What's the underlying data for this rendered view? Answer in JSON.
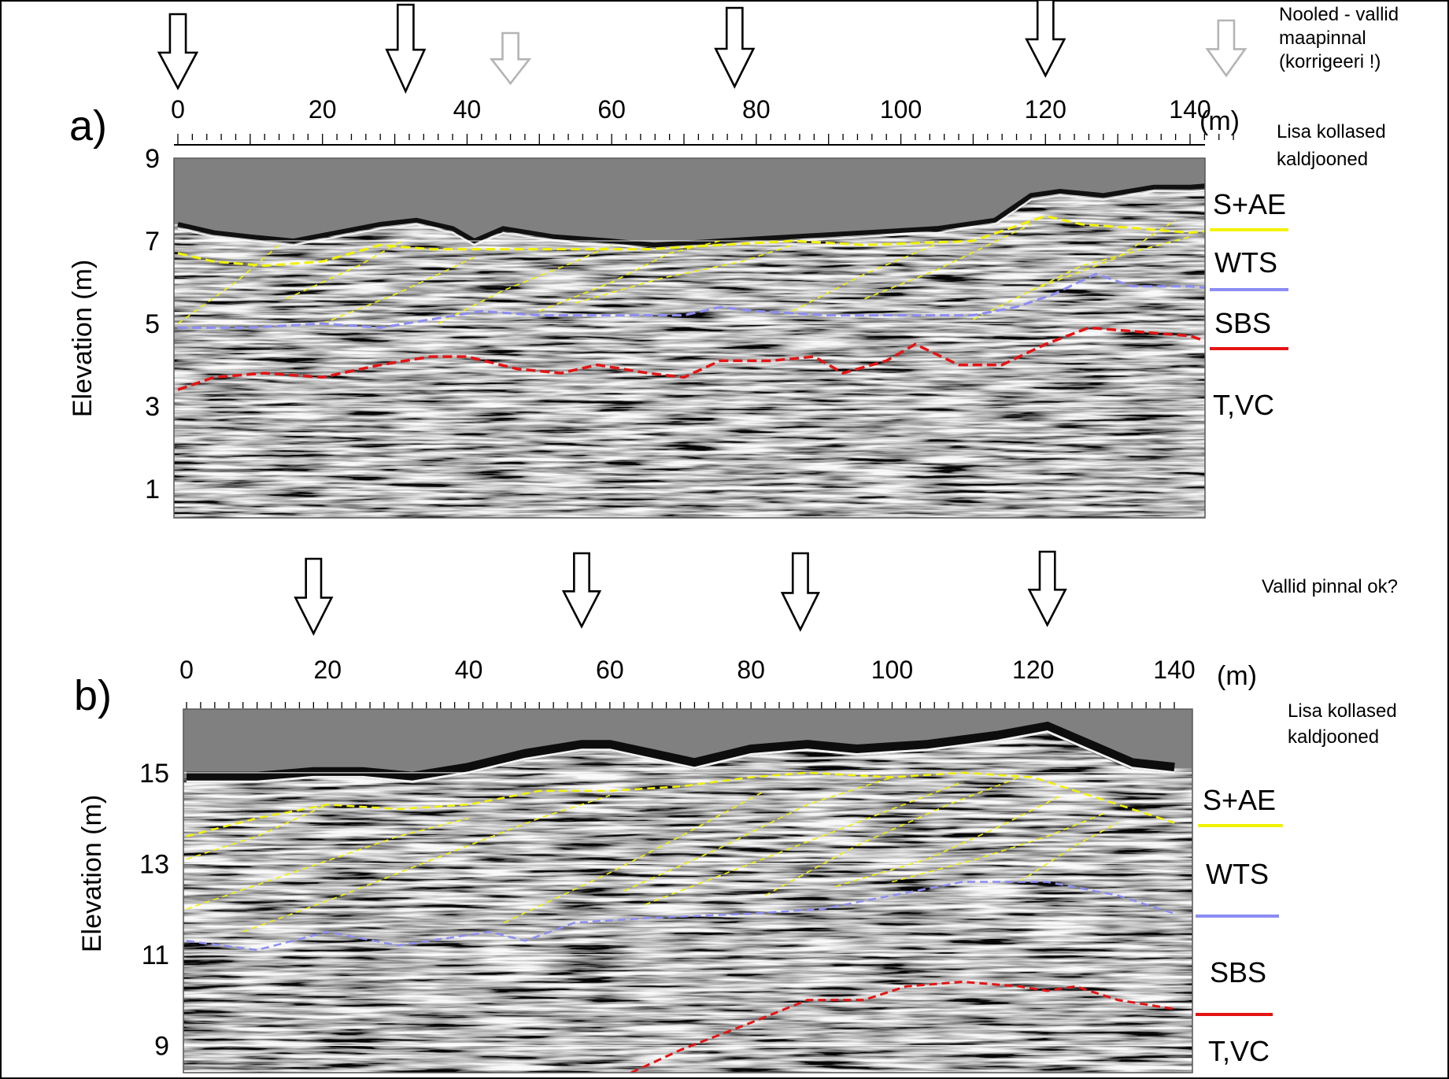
{
  "notes": {
    "top_right": [
      "Nooled - vallid",
      "maapinnal",
      "(korrigeeri !)"
    ],
    "panel_a_right": [
      "Lisa kollased",
      "kaldjooned"
    ],
    "middle_right": "Vallid pinnal ok?",
    "panel_b_right": [
      "Lisa kollased",
      "kaldjooned"
    ]
  },
  "colors": {
    "yellow": "#f2f200",
    "blue": "#8c8cf5",
    "red": "#e41414",
    "sky": "#808080",
    "arrow_black": "#000000",
    "arrow_gray": "#b4b4b4"
  },
  "panels": [
    {
      "id": "a",
      "panel_label": "a)",
      "x_ticks": [
        "0",
        "20",
        "40",
        "60",
        "80",
        "100",
        "120",
        "140"
      ],
      "x_unit": "(m)",
      "x_range": [
        0,
        147
      ],
      "y_label": "Elevation (m)",
      "y_ticks": [
        "9",
        "7",
        "5",
        "3",
        "1"
      ],
      "y_range": [
        0.3,
        9
      ],
      "units": [
        "S+AE",
        "WTS",
        "SBS",
        "T,VC"
      ],
      "unit_line_colors": [
        "yellow",
        "blue",
        "red"
      ],
      "arrows": [
        {
          "at": 0,
          "shade": "black"
        },
        {
          "at": 31.5,
          "shade": "black"
        },
        {
          "at": 46,
          "shade": "gray"
        },
        {
          "at": 77,
          "shade": "black"
        },
        {
          "at": 120,
          "shade": "black"
        },
        {
          "at": 145,
          "shade": "gray"
        }
      ],
      "surface": [
        [
          0,
          7.4
        ],
        [
          5,
          7.2
        ],
        [
          10,
          7.1
        ],
        [
          16,
          7.0
        ],
        [
          22,
          7.2
        ],
        [
          28,
          7.4
        ],
        [
          33,
          7.5
        ],
        [
          38,
          7.3
        ],
        [
          41,
          7.0
        ],
        [
          45,
          7.3
        ],
        [
          52,
          7.1
        ],
        [
          60,
          7.0
        ],
        [
          66,
          6.9
        ],
        [
          75,
          7.0
        ],
        [
          85,
          7.1
        ],
        [
          95,
          7.2
        ],
        [
          105,
          7.3
        ],
        [
          113,
          7.5
        ],
        [
          118,
          8.1
        ],
        [
          122,
          8.2
        ],
        [
          128,
          8.1
        ],
        [
          135,
          8.3
        ],
        [
          140,
          8.3
        ],
        [
          147,
          8.4
        ]
      ],
      "yellow_boundary": [
        [
          0,
          6.7
        ],
        [
          5,
          6.5
        ],
        [
          12,
          6.4
        ],
        [
          20,
          6.5
        ],
        [
          28,
          6.9
        ],
        [
          35,
          6.8
        ],
        [
          45,
          6.8
        ],
        [
          55,
          6.8
        ],
        [
          65,
          6.8
        ],
        [
          75,
          6.9
        ],
        [
          85,
          7.0
        ],
        [
          95,
          6.9
        ],
        [
          110,
          7.0
        ],
        [
          120,
          7.6
        ],
        [
          125,
          7.4
        ],
        [
          133,
          7.3
        ],
        [
          140,
          7.2
        ],
        [
          147,
          7.3
        ]
      ],
      "blue_boundary": [
        [
          0,
          4.9
        ],
        [
          10,
          4.9
        ],
        [
          20,
          5.0
        ],
        [
          28,
          4.9
        ],
        [
          35,
          5.1
        ],
        [
          42,
          5.3
        ],
        [
          50,
          5.2
        ],
        [
          60,
          5.2
        ],
        [
          70,
          5.2
        ],
        [
          75,
          5.4
        ],
        [
          80,
          5.3
        ],
        [
          90,
          5.2
        ],
        [
          100,
          5.2
        ],
        [
          110,
          5.2
        ],
        [
          116,
          5.4
        ],
        [
          121,
          5.7
        ],
        [
          127,
          6.2
        ],
        [
          132,
          5.9
        ],
        [
          140,
          5.9
        ],
        [
          147,
          5.8
        ]
      ],
      "red_boundary": [
        [
          0,
          3.4
        ],
        [
          5,
          3.7
        ],
        [
          12,
          3.8
        ],
        [
          20,
          3.7
        ],
        [
          28,
          4.0
        ],
        [
          35,
          4.2
        ],
        [
          40,
          4.2
        ],
        [
          47,
          3.9
        ],
        [
          53,
          3.8
        ],
        [
          58,
          4.0
        ],
        [
          65,
          3.8
        ],
        [
          70,
          3.7
        ],
        [
          75,
          4.1
        ],
        [
          82,
          4.1
        ],
        [
          88,
          4.2
        ],
        [
          92,
          3.8
        ],
        [
          98,
          4.1
        ],
        [
          102,
          4.5
        ],
        [
          108,
          4.0
        ],
        [
          114,
          4.0
        ],
        [
          120,
          4.5
        ],
        [
          126,
          4.9
        ],
        [
          133,
          4.8
        ],
        [
          140,
          4.7
        ],
        [
          147,
          4.3
        ]
      ],
      "yellow_inclined": [
        [
          [
            0,
            5.0
          ],
          [
            8,
            6.0
          ],
          [
            14,
            6.9
          ]
        ],
        [
          [
            15,
            5.6
          ],
          [
            25,
            6.4
          ],
          [
            31,
            7.0
          ]
        ],
        [
          [
            20,
            5.0
          ],
          [
            30,
            5.7
          ],
          [
            41,
            6.6
          ]
        ],
        [
          [
            36,
            5.0
          ],
          [
            45,
            5.8
          ],
          [
            55,
            6.5
          ],
          [
            60,
            6.9
          ]
        ],
        [
          [
            50,
            5.3
          ],
          [
            60,
            6.0
          ],
          [
            68,
            6.7
          ],
          [
            75,
            7.0
          ]
        ],
        [
          [
            55,
            5.5
          ],
          [
            67,
            6.1
          ],
          [
            78,
            6.5
          ],
          [
            85,
            6.9
          ]
        ],
        [
          [
            85,
            5.3
          ],
          [
            95,
            6.2
          ],
          [
            106,
            7.0
          ]
        ],
        [
          [
            95,
            5.6
          ],
          [
            105,
            6.3
          ],
          [
            118,
            7.4
          ]
        ],
        [
          [
            110,
            5.1
          ],
          [
            125,
            6.4
          ],
          [
            140,
            7.1
          ]
        ],
        [
          [
            118,
            5.8
          ],
          [
            130,
            6.6
          ],
          [
            138,
            7.5
          ]
        ]
      ]
    },
    {
      "id": "b",
      "panel_label": "b)",
      "x_ticks": [
        "0",
        "20",
        "40",
        "60",
        "80",
        "100",
        "120",
        "140"
      ],
      "x_unit": "(m)",
      "x_range": [
        0,
        140
      ],
      "y_label": "Elevation (m)",
      "y_ticks": [
        "15",
        "13",
        "11",
        "9"
      ],
      "y_range": [
        8.4,
        16.4
      ],
      "units": [
        "S+AE",
        "WTS",
        "SBS",
        "T,VC"
      ],
      "unit_line_colors": [
        "yellow",
        "blue",
        "red"
      ],
      "arrows": [
        {
          "at": 18,
          "shade": "black"
        },
        {
          "at": 56,
          "shade": "black"
        },
        {
          "at": 87,
          "shade": "black"
        },
        {
          "at": 122,
          "shade": "black"
        }
      ],
      "surface": [
        [
          0,
          14.9
        ],
        [
          10,
          14.9
        ],
        [
          18,
          15.0
        ],
        [
          25,
          15.0
        ],
        [
          32,
          14.9
        ],
        [
          40,
          15.1
        ],
        [
          48,
          15.4
        ],
        [
          56,
          15.6
        ],
        [
          60,
          15.6
        ],
        [
          66,
          15.4
        ],
        [
          72,
          15.2
        ],
        [
          80,
          15.5
        ],
        [
          88,
          15.6
        ],
        [
          95,
          15.5
        ],
        [
          105,
          15.6
        ],
        [
          115,
          15.8
        ],
        [
          122,
          16.0
        ],
        [
          128,
          15.6
        ],
        [
          134,
          15.2
        ],
        [
          140,
          15.1
        ]
      ],
      "yellow_boundary": [
        [
          0,
          13.6
        ],
        [
          10,
          14.0
        ],
        [
          20,
          14.3
        ],
        [
          30,
          14.2
        ],
        [
          40,
          14.3
        ],
        [
          50,
          14.6
        ],
        [
          60,
          14.6
        ],
        [
          70,
          14.7
        ],
        [
          80,
          14.9
        ],
        [
          88,
          15.0
        ],
        [
          100,
          14.9
        ],
        [
          110,
          15.0
        ],
        [
          120,
          14.9
        ],
        [
          130,
          14.4
        ],
        [
          140,
          13.9
        ]
      ],
      "blue_boundary": [
        [
          0,
          11.3
        ],
        [
          10,
          11.1
        ],
        [
          20,
          11.5
        ],
        [
          30,
          11.2
        ],
        [
          43,
          11.5
        ],
        [
          48,
          11.3
        ],
        [
          55,
          11.7
        ],
        [
          65,
          11.8
        ],
        [
          80,
          11.9
        ],
        [
          90,
          12.0
        ],
        [
          100,
          12.3
        ],
        [
          110,
          12.6
        ],
        [
          122,
          12.6
        ],
        [
          132,
          12.3
        ],
        [
          140,
          11.9
        ]
      ],
      "red_boundary": [
        [
          63,
          8.4
        ],
        [
          70,
          8.9
        ],
        [
          80,
          9.5
        ],
        [
          88,
          10.0
        ],
        [
          96,
          10.0
        ],
        [
          102,
          10.3
        ],
        [
          110,
          10.4
        ],
        [
          118,
          10.3
        ],
        [
          122,
          10.2
        ],
        [
          126,
          10.3
        ],
        [
          132,
          10.0
        ],
        [
          140,
          9.8
        ]
      ],
      "yellow_inclined": [
        [
          [
            0,
            13.1
          ],
          [
            10,
            13.6
          ],
          [
            20,
            14.3
          ]
        ],
        [
          [
            0,
            12.0
          ],
          [
            15,
            12.8
          ],
          [
            30,
            13.6
          ],
          [
            40,
            14.0
          ]
        ],
        [
          [
            8,
            11.5
          ],
          [
            22,
            12.3
          ],
          [
            35,
            13.1
          ],
          [
            50,
            14.0
          ],
          [
            60,
            14.5
          ]
        ],
        [
          [
            45,
            11.7
          ],
          [
            60,
            12.8
          ],
          [
            70,
            13.6
          ],
          [
            82,
            14.6
          ]
        ],
        [
          [
            62,
            12.4
          ],
          [
            75,
            13.3
          ],
          [
            88,
            14.3
          ],
          [
            100,
            14.9
          ]
        ],
        [
          [
            65,
            12.1
          ],
          [
            80,
            13.0
          ],
          [
            95,
            13.9
          ],
          [
            110,
            14.8
          ]
        ],
        [
          [
            82,
            12.3
          ],
          [
            95,
            13.4
          ],
          [
            108,
            14.3
          ],
          [
            118,
            14.9
          ]
        ],
        [
          [
            92,
            12.5
          ],
          [
            105,
            13.1
          ],
          [
            115,
            13.8
          ],
          [
            124,
            14.5
          ]
        ],
        [
          [
            100,
            12.6
          ],
          [
            112,
            13.1
          ],
          [
            122,
            13.6
          ],
          [
            130,
            14.1
          ]
        ],
        [
          [
            118,
            12.6
          ],
          [
            126,
            13.4
          ],
          [
            132,
            13.9
          ]
        ]
      ]
    }
  ]
}
